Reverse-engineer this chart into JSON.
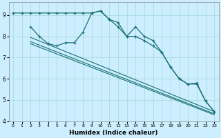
{
  "xlabel": "Humidex (Indice chaleur)",
  "bg_color": "#cceeff",
  "line_color": "#1a7070",
  "grid_color": "#aadddd",
  "xlim": [
    -0.5,
    23.5
  ],
  "ylim": [
    4.0,
    9.6
  ],
  "xticks": [
    0,
    1,
    2,
    3,
    4,
    5,
    6,
    7,
    8,
    9,
    10,
    11,
    12,
    13,
    14,
    15,
    16,
    17,
    18,
    19,
    20,
    21,
    22,
    23
  ],
  "yticks": [
    4,
    5,
    6,
    7,
    8,
    9
  ],
  "line1_x": [
    0,
    1,
    2,
    3,
    4,
    5,
    6,
    7,
    8,
    9,
    10,
    11,
    12,
    13,
    14,
    15,
    16,
    17,
    18,
    19,
    20,
    21,
    22,
    23
  ],
  "line1_y": [
    9.1,
    9.1,
    9.1,
    9.1,
    9.1,
    9.1,
    9.1,
    9.1,
    9.1,
    9.1,
    9.2,
    8.8,
    8.65,
    8.0,
    8.45,
    8.0,
    7.8,
    7.25,
    6.55,
    6.0,
    5.75,
    5.8,
    4.95,
    4.45
  ],
  "line2_x": [
    2,
    3,
    4,
    5,
    6,
    7,
    8,
    9,
    10,
    11,
    12,
    13,
    14,
    15,
    16,
    17,
    18,
    19,
    20,
    21,
    22,
    23
  ],
  "line2_y": [
    8.45,
    8.0,
    7.65,
    7.55,
    7.7,
    7.7,
    8.2,
    9.1,
    9.2,
    8.8,
    8.45,
    8.0,
    8.0,
    7.8,
    7.55,
    7.25,
    6.55,
    6.0,
    5.75,
    5.75,
    4.95,
    4.45
  ],
  "line3_x": [
    2,
    23
  ],
  "line3_y": [
    7.95,
    4.45
  ],
  "line4_x": [
    2,
    23
  ],
  "line4_y": [
    7.75,
    4.35
  ],
  "line5_x": [
    2,
    23
  ],
  "line5_y": [
    7.65,
    4.3
  ]
}
